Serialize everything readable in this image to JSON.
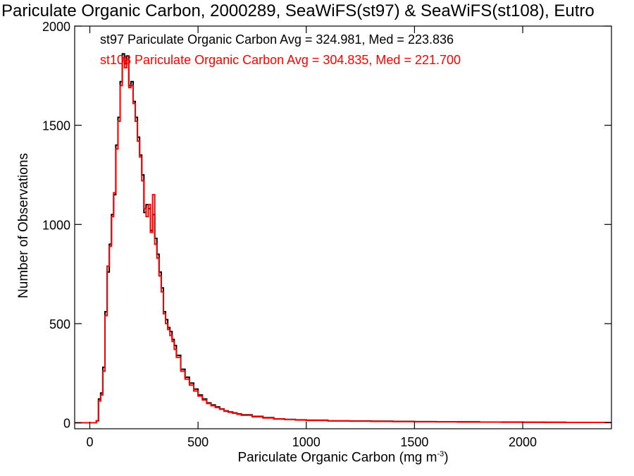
{
  "chart_data": {
    "type": "histogram",
    "title": "Pariculate Organic Carbon, 2000289, SeaWiFS(st97) & SeaWiFS(st108), Eutro",
    "xlabel": "Pariculate Organic Carbon (mg m",
    "xlabel_unit_exponent": "-3",
    "xlabel_close": ")",
    "ylabel": "Number of Observations",
    "xlim": [
      -70,
      2410
    ],
    "ylim": [
      -30,
      2000
    ],
    "xticks": [
      0,
      500,
      1000,
      1500,
      2000
    ],
    "yticks": [
      0,
      500,
      1000,
      1500,
      2000
    ],
    "grid": false,
    "legend_position": "top-left",
    "series": [
      {
        "name": "st97 Pariculate Organic Carbon Avg = 324.981, Med = 223.836",
        "color": "#000000",
        "x": [
          -70,
          0,
          30,
          40,
          50,
          60,
          70,
          80,
          90,
          100,
          110,
          120,
          130,
          140,
          150,
          160,
          170,
          180,
          190,
          200,
          210,
          220,
          230,
          240,
          250,
          260,
          270,
          280,
          290,
          300,
          310,
          320,
          330,
          340,
          350,
          360,
          370,
          380,
          390,
          400,
          420,
          440,
          460,
          480,
          500,
          520,
          540,
          560,
          580,
          600,
          620,
          640,
          660,
          680,
          700,
          750,
          800,
          850,
          900,
          950,
          1000,
          1100,
          1200,
          1300,
          1400,
          1500,
          1600,
          1700,
          1800,
          1900,
          2000,
          2100,
          2200,
          2300,
          2400
        ],
        "y": [
          0,
          0,
          10,
          120,
          150,
          280,
          560,
          760,
          900,
          1050,
          1150,
          1400,
          1540,
          1720,
          1860,
          1810,
          1850,
          1700,
          1720,
          1620,
          1540,
          1440,
          1350,
          1250,
          1060,
          1100,
          1080,
          970,
          1050,
          930,
          850,
          760,
          680,
          560,
          520,
          480,
          460,
          420,
          390,
          340,
          270,
          230,
          200,
          170,
          140,
          120,
          100,
          90,
          80,
          70,
          60,
          55,
          50,
          45,
          40,
          32,
          26,
          20,
          17,
          15,
          13,
          10,
          9,
          8,
          7,
          6,
          5,
          5,
          4,
          4,
          3,
          3,
          2,
          2,
          2
        ]
      },
      {
        "name": "st108 Pariculate Organic Carbon Avg = 304.835, Med = 221.700",
        "color": "#ff0000",
        "x": [
          -70,
          0,
          30,
          40,
          50,
          60,
          70,
          80,
          90,
          100,
          110,
          120,
          130,
          140,
          150,
          160,
          170,
          180,
          190,
          200,
          210,
          220,
          230,
          240,
          250,
          260,
          270,
          280,
          290,
          300,
          310,
          320,
          330,
          340,
          350,
          360,
          370,
          380,
          390,
          400,
          420,
          440,
          460,
          480,
          500,
          520,
          540,
          560,
          580,
          600,
          620,
          640,
          660,
          680,
          700,
          750,
          800,
          850,
          900,
          950,
          1000,
          1100,
          1200,
          1300,
          1400,
          1500,
          1600,
          1700,
          1800,
          1900,
          2000,
          2100,
          2200,
          2300,
          2400
        ],
        "y": [
          0,
          0,
          10,
          110,
          140,
          260,
          540,
          790,
          890,
          1040,
          1160,
          1380,
          1520,
          1700,
          1840,
          1790,
          1830,
          1690,
          1700,
          1610,
          1520,
          1420,
          1340,
          1220,
          1080,
          1040,
          1100,
          960,
          1150,
          900,
          830,
          740,
          660,
          550,
          500,
          470,
          440,
          410,
          370,
          330,
          260,
          220,
          190,
          160,
          135,
          115,
          97,
          86,
          77,
          68,
          58,
          53,
          48,
          43,
          38,
          30,
          24,
          19,
          16,
          14,
          12,
          9,
          8,
          7,
          6,
          5,
          5,
          4,
          4,
          3,
          3,
          2,
          2,
          2,
          2
        ]
      }
    ]
  }
}
